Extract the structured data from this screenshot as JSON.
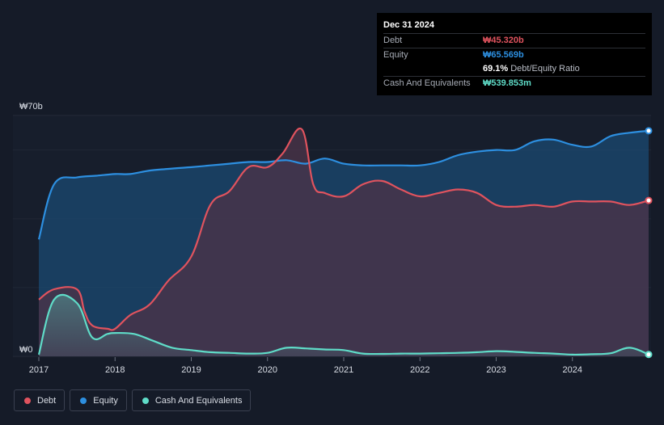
{
  "chart_data": {
    "type": "area",
    "currency_unit": "₩b",
    "y_top_label": "₩70b",
    "y_zero_label": "₩0",
    "ylim": [
      0,
      70
    ],
    "x_ticks": [
      "2017",
      "2018",
      "2019",
      "2020",
      "2021",
      "2022",
      "2023",
      "2024"
    ],
    "series": [
      {
        "name": "Debt",
        "color": "#e0535e",
        "points": [
          [
            2017.0,
            16.5
          ],
          [
            2017.2,
            19.5
          ],
          [
            2017.5,
            19.5
          ],
          [
            2017.6,
            13
          ],
          [
            2017.7,
            9
          ],
          [
            2017.9,
            8
          ],
          [
            2018.0,
            8
          ],
          [
            2018.2,
            12
          ],
          [
            2018.45,
            15
          ],
          [
            2018.7,
            22
          ],
          [
            2019.0,
            29
          ],
          [
            2019.25,
            44
          ],
          [
            2019.5,
            48
          ],
          [
            2019.75,
            55
          ],
          [
            2020.0,
            55
          ],
          [
            2020.2,
            59
          ],
          [
            2020.45,
            66
          ],
          [
            2020.6,
            50
          ],
          [
            2020.75,
            47.5
          ],
          [
            2021.0,
            46.5
          ],
          [
            2021.25,
            50
          ],
          [
            2021.5,
            51
          ],
          [
            2021.75,
            48.5
          ],
          [
            2022.0,
            46.5
          ],
          [
            2022.25,
            47.5
          ],
          [
            2022.5,
            48.5
          ],
          [
            2022.75,
            47.5
          ],
          [
            2023.0,
            44
          ],
          [
            2023.25,
            43.5
          ],
          [
            2023.5,
            44
          ],
          [
            2023.75,
            43.5
          ],
          [
            2024.0,
            45
          ],
          [
            2024.25,
            45
          ],
          [
            2024.5,
            45
          ],
          [
            2024.75,
            44
          ],
          [
            2025.0,
            45.32
          ]
        ]
      },
      {
        "name": "Equity",
        "color": "#2d8fe0",
        "points": [
          [
            2017.0,
            34
          ],
          [
            2017.2,
            50
          ],
          [
            2017.5,
            52
          ],
          [
            2017.75,
            52.5
          ],
          [
            2018.0,
            53
          ],
          [
            2018.2,
            53
          ],
          [
            2018.45,
            54
          ],
          [
            2018.7,
            54.5
          ],
          [
            2019.0,
            55
          ],
          [
            2019.25,
            55.5
          ],
          [
            2019.5,
            56
          ],
          [
            2019.75,
            56.5
          ],
          [
            2020.0,
            56.5
          ],
          [
            2020.25,
            57
          ],
          [
            2020.5,
            56
          ],
          [
            2020.75,
            57.5
          ],
          [
            2021.0,
            56
          ],
          [
            2021.25,
            55.5
          ],
          [
            2021.5,
            55.5
          ],
          [
            2021.75,
            55.5
          ],
          [
            2022.0,
            55.5
          ],
          [
            2022.25,
            56.5
          ],
          [
            2022.5,
            58.5
          ],
          [
            2022.75,
            59.5
          ],
          [
            2023.0,
            60
          ],
          [
            2023.25,
            60
          ],
          [
            2023.5,
            62.5
          ],
          [
            2023.75,
            63
          ],
          [
            2024.0,
            61.5
          ],
          [
            2024.25,
            61
          ],
          [
            2024.5,
            64
          ],
          [
            2024.75,
            65
          ],
          [
            2025.0,
            65.569
          ]
        ]
      },
      {
        "name": "Cash And Equivalents",
        "color": "#5fdcc8",
        "points": [
          [
            2017.0,
            0.5
          ],
          [
            2017.2,
            16.5
          ],
          [
            2017.5,
            15.5
          ],
          [
            2017.7,
            5.5
          ],
          [
            2017.9,
            6.5
          ],
          [
            2018.0,
            6.8
          ],
          [
            2018.25,
            6.5
          ],
          [
            2018.5,
            4.5
          ],
          [
            2018.75,
            2.5
          ],
          [
            2019.0,
            1.8
          ],
          [
            2019.25,
            1.2
          ],
          [
            2019.5,
            1.0
          ],
          [
            2019.75,
            0.8
          ],
          [
            2020.0,
            1.0
          ],
          [
            2020.25,
            2.5
          ],
          [
            2020.5,
            2.3
          ],
          [
            2020.75,
            2.0
          ],
          [
            2021.0,
            1.8
          ],
          [
            2021.25,
            0.8
          ],
          [
            2021.5,
            0.7
          ],
          [
            2021.75,
            0.8
          ],
          [
            2022.0,
            0.8
          ],
          [
            2022.25,
            0.9
          ],
          [
            2022.5,
            1.0
          ],
          [
            2022.75,
            1.2
          ],
          [
            2023.0,
            1.5
          ],
          [
            2023.25,
            1.3
          ],
          [
            2023.5,
            1.0
          ],
          [
            2023.75,
            0.8
          ],
          [
            2024.0,
            0.5
          ],
          [
            2024.25,
            0.6
          ],
          [
            2024.5,
            0.9
          ],
          [
            2024.75,
            2.5
          ],
          [
            2025.0,
            0.54
          ]
        ]
      }
    ]
  },
  "tooltip": {
    "date": "Dec 31 2024",
    "debt_label": "Debt",
    "debt_value": "₩45.320b",
    "equity_label": "Equity",
    "equity_value": "₩65.569b",
    "ratio_value": "69.1%",
    "ratio_label": "Debt/Equity Ratio",
    "cash_label": "Cash And Equivalents",
    "cash_value": "₩539.853m"
  },
  "legend": {
    "debt": "Debt",
    "equity": "Equity",
    "cash": "Cash And Equivalents"
  },
  "colors": {
    "debt": "#e0535e",
    "equity": "#2d8fe0",
    "cash": "#5fdcc8"
  }
}
